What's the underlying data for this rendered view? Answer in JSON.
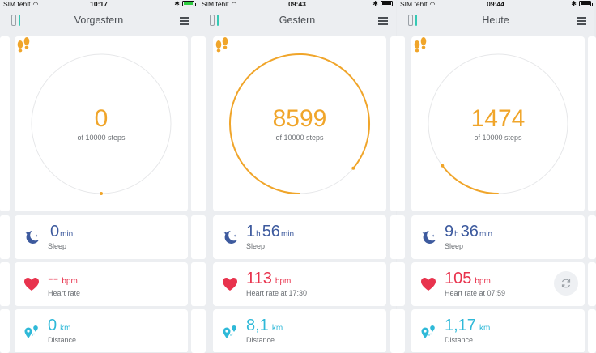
{
  "screens": [
    {
      "status": {
        "carrier": "SIM fehlt",
        "time": "10:17",
        "battery_color": "#2ecc40"
      },
      "title": "Vorgestern",
      "steps": {
        "value": "0",
        "goal_label": "of 10000 steps",
        "progress": 0.0
      },
      "sleep": {
        "hours": "",
        "h_unit": "",
        "minutes": "0",
        "min_unit": "min",
        "label": "Sleep"
      },
      "heart": {
        "value": "--",
        "unit": "bpm",
        "label": "Heart rate"
      },
      "distance": {
        "value": "0",
        "unit": "km",
        "label": "Distance"
      },
      "show_refresh": false
    },
    {
      "status": {
        "carrier": "SIM fehlt",
        "time": "09:43",
        "battery_color": "#111111"
      },
      "title": "Gestern",
      "steps": {
        "value": "8599",
        "goal_label": "of 10000 steps",
        "progress": 0.8599
      },
      "sleep": {
        "hours": "1",
        "h_unit": "h",
        "minutes": "56",
        "min_unit": "min",
        "label": "Sleep"
      },
      "heart": {
        "value": "113",
        "unit": "bpm",
        "label": "Heart rate at 17:30"
      },
      "distance": {
        "value": "8,1",
        "unit": "km",
        "label": "Distance"
      },
      "show_refresh": false
    },
    {
      "status": {
        "carrier": "SIM fehlt",
        "time": "09:44",
        "battery_color": "#111111"
      },
      "title": "Heute",
      "steps": {
        "value": "1474",
        "goal_label": "of 10000 steps",
        "progress": 0.1474
      },
      "sleep": {
        "hours": "9",
        "h_unit": "h",
        "minutes": "36",
        "min_unit": "min",
        "label": "Sleep"
      },
      "heart": {
        "value": "105",
        "unit": "bpm",
        "label": "Heart rate at 07:59"
      },
      "distance": {
        "value": "1,17",
        "unit": "km",
        "label": "Distance"
      },
      "show_refresh": true
    }
  ],
  "icons": {
    "band": "fitness-band-icon",
    "menu": "hamburger-menu-icon",
    "steps": "footprints-icon",
    "sleep": "moon-stars-icon",
    "heart": "heart-icon",
    "distance": "map-pins-icon",
    "refresh": "refresh-icon"
  },
  "colors": {
    "steps": "#f0a52a",
    "sleep": "#3d5a9e",
    "heart": "#e8334d",
    "distance": "#2fb9d8",
    "band_accent": "#35c9b4"
  }
}
